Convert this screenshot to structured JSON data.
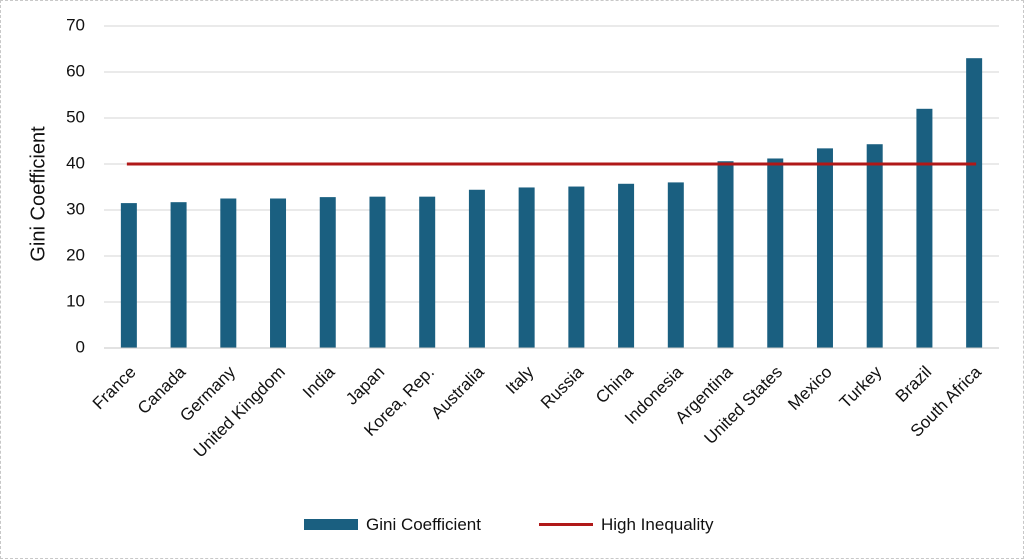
{
  "chart_data": {
    "type": "bar",
    "categories": [
      "France",
      "Canada",
      "Germany",
      "United Kingdom",
      "India",
      "Japan",
      "Korea, Rep.",
      "Australia",
      "Italy",
      "Russia",
      "China",
      "Indonesia",
      "Argentina",
      "United States",
      "Mexico",
      "Turkey",
      "Brazil",
      "South Africa"
    ],
    "series": [
      {
        "name": "Gini Coefficient",
        "type": "bar",
        "color": "#1a5f80",
        "values": [
          31.5,
          31.7,
          32.5,
          32.5,
          32.8,
          32.9,
          32.9,
          34.4,
          34.9,
          35.1,
          35.7,
          36.0,
          40.6,
          41.2,
          43.4,
          44.3,
          52.0,
          63.0
        ]
      },
      {
        "name": "High Inequality",
        "type": "line",
        "color": "#b01818",
        "value": 40
      }
    ],
    "title": "",
    "xlabel": "",
    "ylabel": "Gini Coefficient",
    "ylim": [
      0,
      70
    ],
    "yticks": [
      0,
      10,
      20,
      30,
      40,
      50,
      60,
      70
    ],
    "grid": true,
    "legend_position": "bottom"
  }
}
